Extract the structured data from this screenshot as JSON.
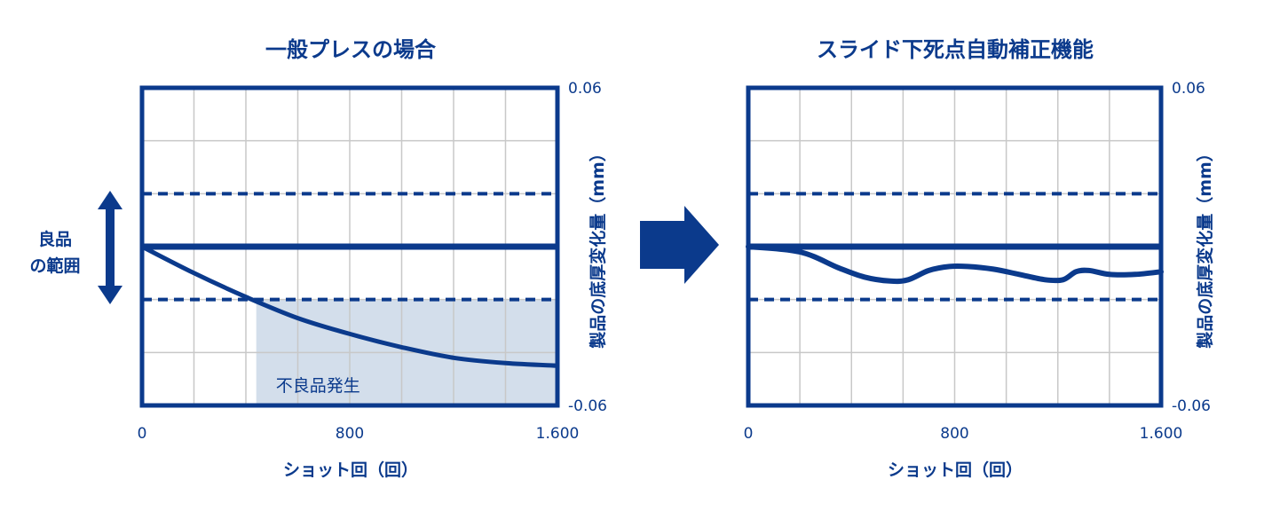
{
  "colors": {
    "primary": "#0b3a8c",
    "grid": "#c8c8c8",
    "defect_fill": "#d3deeb"
  },
  "range_label_line1": "良品",
  "range_label_line2": "の範囲",
  "arrow_icon": "right-arrow",
  "chart_data": [
    {
      "type": "line",
      "title": "一般プレスの場合",
      "xlabel": "ショット回（回）",
      "ylabel": "製品の底厚変化量（mm）",
      "xlim": [
        0,
        1600
      ],
      "ylim": [
        -0.06,
        0.06
      ],
      "x_ticks": [
        {
          "value": 0,
          "label": "0"
        },
        {
          "value": 800,
          "label": "800"
        },
        {
          "value": 1600,
          "label": "1.600"
        }
      ],
      "y_ticks": [
        {
          "value": 0.06,
          "label": "0.06"
        },
        {
          "value": -0.06,
          "label": "-0.06"
        }
      ],
      "grid": true,
      "reference_line": 0,
      "tolerance": [
        0.02,
        -0.02
      ],
      "defect_region": {
        "x_start": 440,
        "x_end": 1600,
        "y_top": -0.02,
        "y_bottom": -0.06,
        "label": "不良品発生"
      },
      "series": [
        {
          "x": [
            0,
            200,
            400,
            600,
            800,
            1000,
            1200,
            1400,
            1600
          ],
          "y": [
            0,
            -0.01,
            -0.019,
            -0.027,
            -0.033,
            -0.038,
            -0.042,
            -0.044,
            -0.045
          ]
        }
      ]
    },
    {
      "type": "line",
      "title": "スライド下死点自動補正機能",
      "xlabel": "ショット回（回）",
      "ylabel": "製品の底厚変化量（mm）",
      "xlim": [
        0,
        1600
      ],
      "ylim": [
        -0.06,
        0.06
      ],
      "x_ticks": [
        {
          "value": 0,
          "label": "0"
        },
        {
          "value": 800,
          "label": "800"
        },
        {
          "value": 1600,
          "label": "1.600"
        }
      ],
      "y_ticks": [
        {
          "value": 0.06,
          "label": "0.06"
        },
        {
          "value": -0.06,
          "label": "-0.06"
        }
      ],
      "grid": true,
      "reference_line": 0,
      "tolerance": [
        0.02,
        -0.02
      ],
      "series": [
        {
          "x": [
            0,
            200,
            350,
            450,
            550,
            620,
            700,
            780,
            850,
            950,
            1050,
            1150,
            1220,
            1270,
            1320,
            1400,
            1500,
            1600
          ],
          "y": [
            0,
            -0.002,
            -0.008,
            -0.0115,
            -0.013,
            -0.0125,
            -0.009,
            -0.0075,
            -0.0075,
            -0.0085,
            -0.0105,
            -0.0125,
            -0.0125,
            -0.0095,
            -0.009,
            -0.0105,
            -0.0105,
            -0.0095
          ]
        }
      ]
    }
  ]
}
